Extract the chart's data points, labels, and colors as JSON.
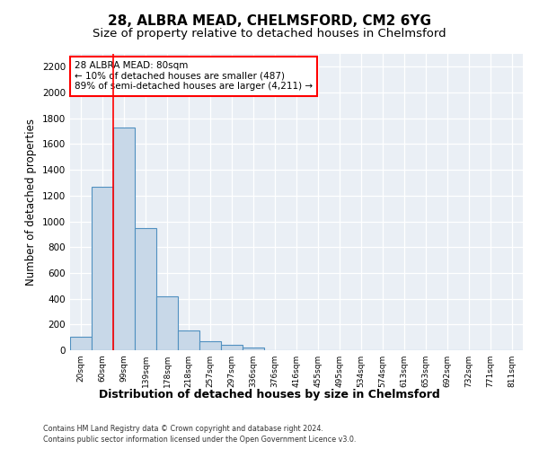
{
  "title1": "28, ALBRA MEAD, CHELMSFORD, CM2 6YG",
  "title2": "Size of property relative to detached houses in Chelmsford",
  "xlabel": "Distribution of detached houses by size in Chelmsford",
  "ylabel": "Number of detached properties",
  "footer1": "Contains HM Land Registry data © Crown copyright and database right 2024.",
  "footer2": "Contains public sector information licensed under the Open Government Licence v3.0.",
  "bin_labels": [
    "20sqm",
    "60sqm",
    "99sqm",
    "139sqm",
    "178sqm",
    "218sqm",
    "257sqm",
    "297sqm",
    "336sqm",
    "376sqm",
    "416sqm",
    "455sqm",
    "495sqm",
    "534sqm",
    "574sqm",
    "613sqm",
    "653sqm",
    "692sqm",
    "732sqm",
    "771sqm",
    "811sqm"
  ],
  "bar_values": [
    105,
    1270,
    1730,
    950,
    415,
    150,
    70,
    42,
    22,
    0,
    0,
    0,
    0,
    0,
    0,
    0,
    0,
    0,
    0,
    0,
    0
  ],
  "bar_color": "#c8d8e8",
  "bar_edge_color": "#5090c0",
  "red_line_x": 1.5,
  "annotation_text": "28 ALBRA MEAD: 80sqm\n← 10% of detached houses are smaller (487)\n89% of semi-detached houses are larger (4,211) →",
  "ylim": [
    0,
    2300
  ],
  "yticks": [
    0,
    200,
    400,
    600,
    800,
    1000,
    1200,
    1400,
    1600,
    1800,
    2000,
    2200
  ],
  "plot_bg_color": "#eaeff5",
  "grid_color": "#ffffff",
  "title1_fontsize": 11,
  "title2_fontsize": 9.5,
  "xlabel_fontsize": 9,
  "ylabel_fontsize": 8.5
}
